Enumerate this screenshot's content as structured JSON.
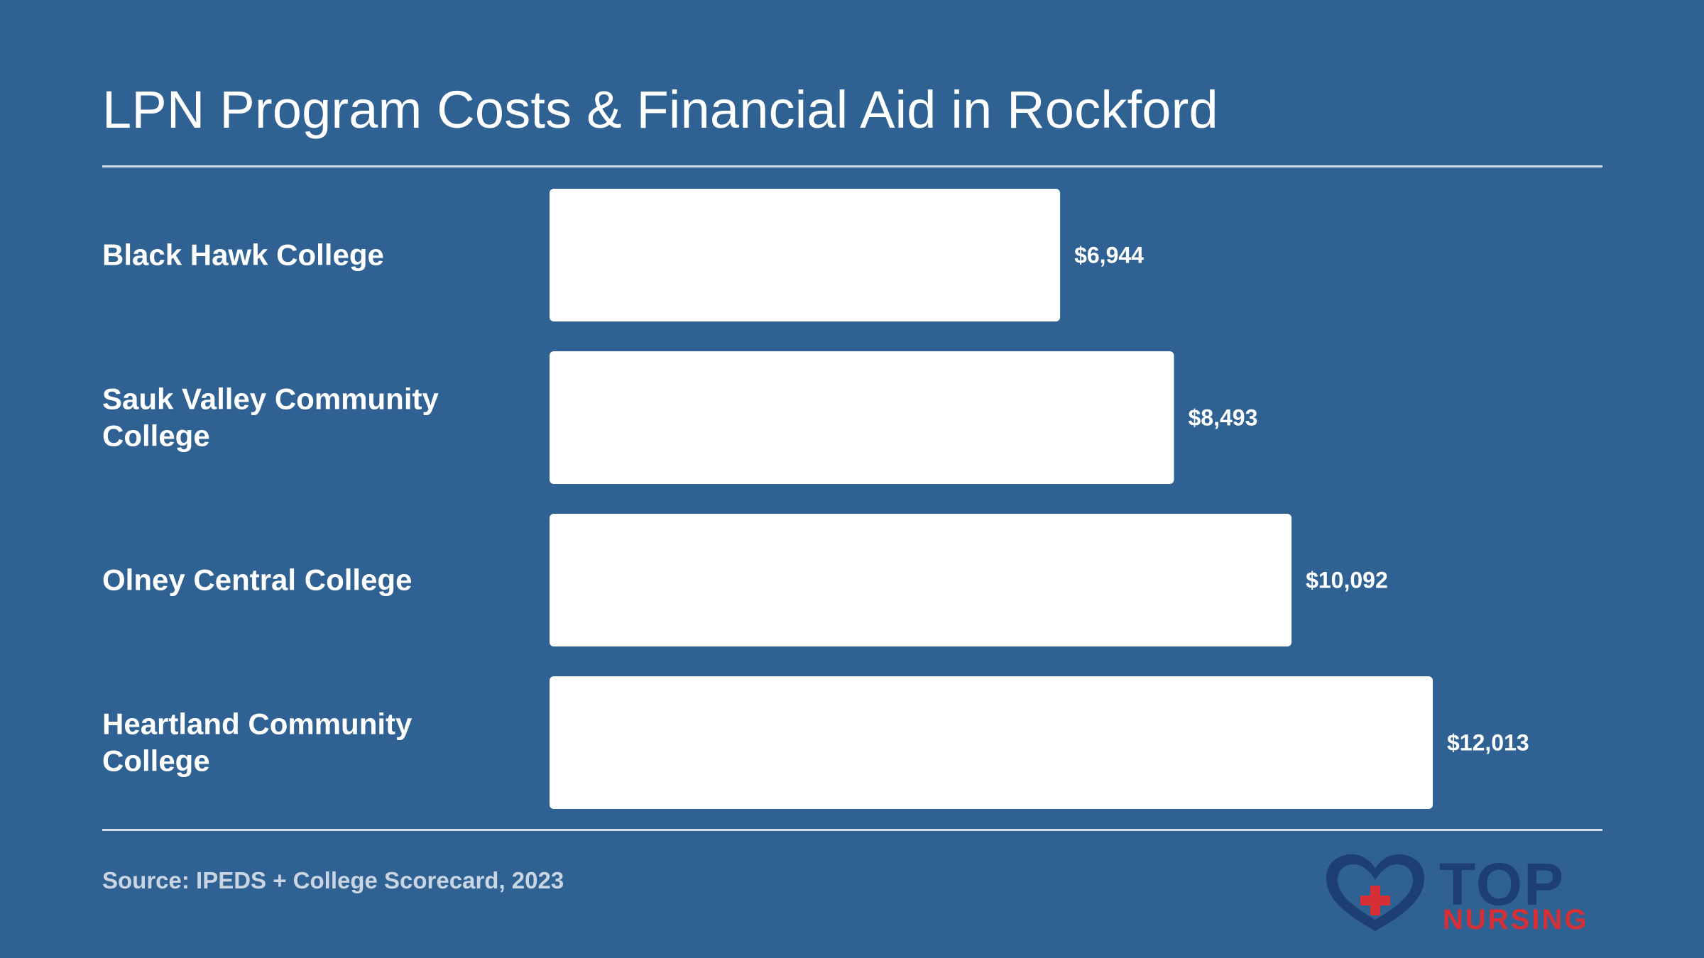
{
  "title": "LPN Program Costs & Financial Aid in Rockford",
  "source": "Source: IPEDS + College Scorecard, 2023",
  "logo": {
    "top": "TOP",
    "nursing": "NURSING",
    "icon": "heart-cross-icon"
  },
  "colors": {
    "background": "#2f6293",
    "bar": "#ffffff",
    "logo_navy": "#1d3f73",
    "logo_red": "#d62f35"
  },
  "chart_data": {
    "type": "bar",
    "orientation": "horizontal",
    "categories": [
      [
        "Black Hawk College"
      ],
      [
        "Sauk Valley Community",
        "College"
      ],
      [
        "Olney Central College"
      ],
      [
        "Heartland Community",
        "College"
      ]
    ],
    "values": [
      6944,
      8493,
      10092,
      12013
    ],
    "value_labels": [
      "$6,944",
      "$8,493",
      "$10,092",
      "$12,013"
    ],
    "xlim": [
      0,
      12013
    ],
    "grid": false
  }
}
